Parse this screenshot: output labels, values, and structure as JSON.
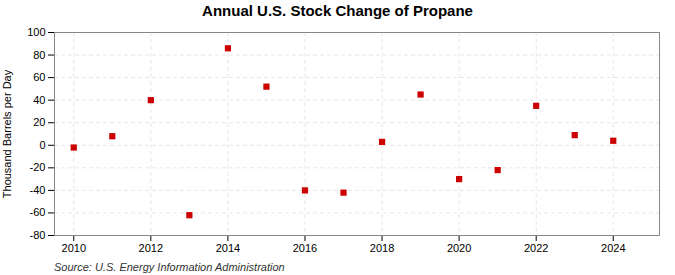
{
  "chart_data": {
    "type": "scatter",
    "title": "Annual U.S. Stock Change of Propane",
    "ylabel": "Thousand Barrels per Day",
    "source": "Source: U.S. Energy Information Administration",
    "x": [
      2010,
      2011,
      2012,
      2013,
      2014,
      2015,
      2016,
      2017,
      2018,
      2019,
      2020,
      2021,
      2022,
      2023,
      2024
    ],
    "values": [
      -2,
      8,
      40,
      -62,
      86,
      52,
      -40,
      -42,
      3,
      45,
      -30,
      -22,
      35,
      9,
      4
    ],
    "color": "#cc0000",
    "marker": "square",
    "xlim": [
      2009.5,
      2025.2
    ],
    "xticks": [
      2010,
      2012,
      2014,
      2016,
      2018,
      2020,
      2022,
      2024
    ],
    "ylim": [
      -80,
      100
    ],
    "yticks": [
      -80,
      -60,
      -40,
      -20,
      0,
      20,
      40,
      60,
      80,
      100
    ],
    "grid": true
  }
}
